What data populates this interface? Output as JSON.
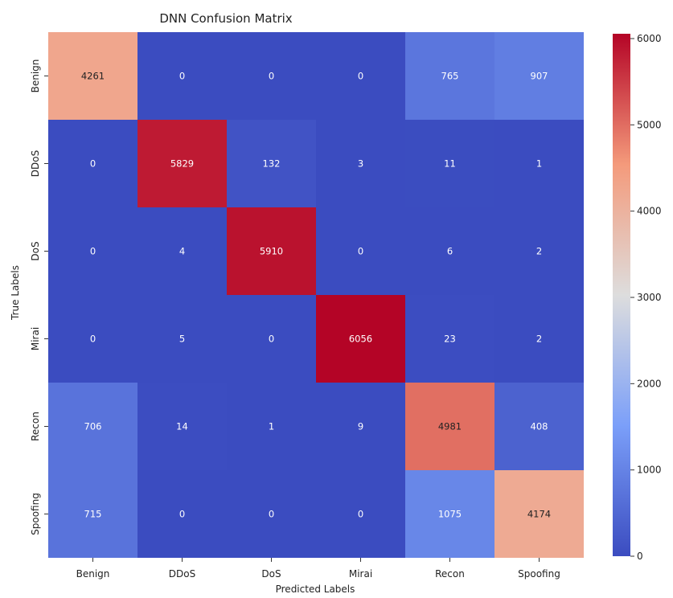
{
  "chart_data": {
    "type": "heatmap",
    "title": "DNN Confusion Matrix",
    "xlabel": "Predicted Labels",
    "ylabel": "True Labels",
    "x_categories": [
      "Benign",
      "DDoS",
      "DoS",
      "Mirai",
      "Recon",
      "Spoofing"
    ],
    "y_categories": [
      "Benign",
      "DDoS",
      "DoS",
      "Mirai",
      "Recon",
      "Spoofing"
    ],
    "values": [
      [
        4261,
        0,
        0,
        0,
        765,
        907
      ],
      [
        0,
        5829,
        132,
        3,
        11,
        1
      ],
      [
        0,
        4,
        5910,
        0,
        6,
        2
      ],
      [
        0,
        5,
        0,
        6056,
        23,
        2
      ],
      [
        706,
        14,
        1,
        9,
        4981,
        408
      ],
      [
        715,
        0,
        0,
        0,
        1075,
        4174
      ]
    ],
    "colormap": "coolwarm",
    "colorbar": {
      "range": [
        0,
        6056
      ],
      "ticks": [
        0,
        1000,
        2000,
        3000,
        4000,
        5000,
        6000
      ]
    }
  }
}
